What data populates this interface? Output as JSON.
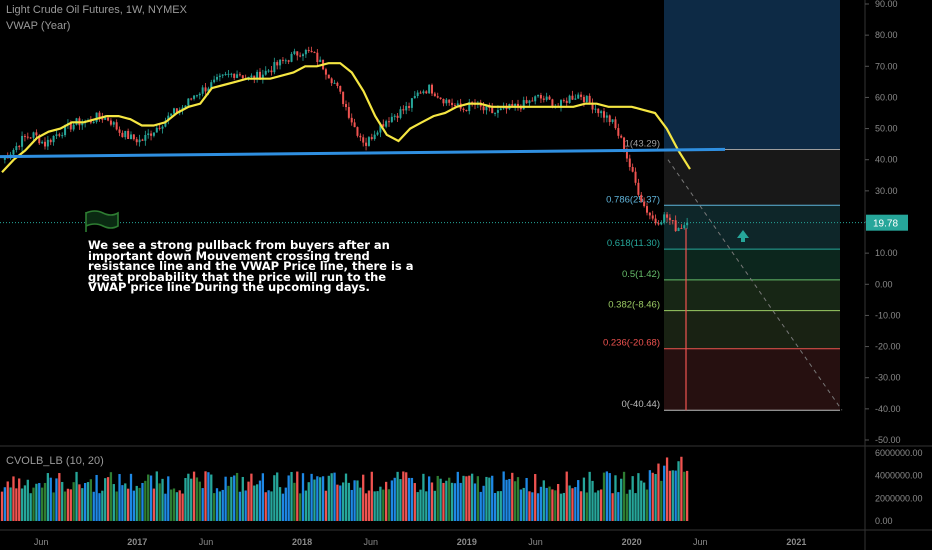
{
  "header": {
    "symbol": "Light Crude Oil Futures, 1W, NYMEX",
    "indicator": "VWAP (Year)",
    "volume_indicator": "CVOLB_LB (10, 20)"
  },
  "annotation": {
    "text": "We see a strong pullback from buyers after an important down Mouvement crossing trend resistance line and the  VWAP Price line, there is a great probability that the price will run to the VWAP price line During the upcoming days."
  },
  "colors": {
    "up": "#26a69a",
    "down": "#ef5350",
    "vwap": "#f5e642",
    "trendline": "#2f8fe0",
    "highlight_zone": "#0d2a45",
    "price_label_bg": "#26a69a"
  },
  "chart_data": [
    {
      "type": "candlestick",
      "title": "",
      "y_range": [
        -50,
        90
      ],
      "y_ticks": [
        "90.00",
        "80.00",
        "70.00",
        "60.00",
        "50.00",
        "40.00",
        "30.00",
        "20.00",
        "10.00",
        "0.00",
        "-10.00",
        "-20.00",
        "-30.00",
        "-40.00",
        "-50.00"
      ],
      "x_ticks": [
        "Jun",
        "2017",
        "Jun",
        "2018",
        "Jun",
        "2019",
        "Jun",
        "2020",
        "Jun",
        "2021"
      ],
      "x_tick_dates": [
        "2016-06",
        "2017-01",
        "2017-06",
        "2018-01",
        "2018-06",
        "2019-01",
        "2019-06",
        "2020-01",
        "2020-06",
        "2021-01"
      ],
      "x_range": [
        "2016-03",
        "2021-06"
      ],
      "current_price": "19.78",
      "price_close_approx": [
        40,
        43,
        47,
        48,
        45,
        48,
        50,
        52,
        52,
        54,
        53,
        49,
        47,
        46,
        49,
        52,
        55,
        57,
        61,
        63,
        65,
        67,
        68,
        66,
        67,
        69,
        71,
        73,
        75,
        74,
        70,
        65,
        58,
        50,
        45,
        50,
        53,
        55,
        57,
        62,
        63,
        60,
        58,
        56,
        58,
        56,
        55,
        56,
        57,
        58,
        60,
        59,
        57,
        60,
        61,
        58,
        55,
        52,
        45,
        34,
        25,
        20,
        22,
        18,
        19.78
      ],
      "vwap_approx": [
        36,
        40,
        43,
        47,
        49,
        50,
        52,
        52,
        53,
        54,
        54,
        53,
        51,
        51,
        52,
        55,
        57,
        58,
        63,
        64,
        65,
        66,
        66,
        66,
        67,
        68,
        70,
        70,
        71,
        71,
        68,
        62,
        54,
        48,
        46,
        50,
        52,
        54,
        55,
        57,
        58,
        58,
        57,
        57,
        57,
        57,
        57,
        57,
        57,
        57,
        58,
        58,
        57,
        57,
        57,
        56,
        55,
        50,
        43,
        37
      ],
      "trendline": {
        "from_price": 41,
        "to_price": 43.3
      },
      "fibonacci": [
        {
          "level": "1",
          "value": "43.29",
          "label": "1(43.29)",
          "color": "#9e9e9e"
        },
        {
          "level": "0.786",
          "value": "25.37",
          "label": "0.786(25.37)",
          "color": "#5fb3d9"
        },
        {
          "level": "0.618",
          "value": "11.30",
          "label": "0.618(11.30)",
          "color": "#26a69a"
        },
        {
          "level": "0.5",
          "value": "1.42",
          "label": "0.5(1.42)",
          "color": "#66bb6a"
        },
        {
          "level": "0.382",
          "value": "-8.46",
          "label": "0.382(-8.46)",
          "color": "#9ccc65"
        },
        {
          "level": "0.236",
          "value": "-20.68",
          "label": "0.236(-20.68)",
          "color": "#ef5350"
        },
        {
          "level": "0",
          "value": "-40.44",
          "label": "0(-40.44)",
          "color": "#bdbdbd"
        }
      ],
      "spike_low": -40.44
    },
    {
      "type": "bar",
      "title": "",
      "y_range": [
        0,
        6000000
      ],
      "y_ticks": [
        "6000000.00",
        "4000000.00",
        "2000000.00",
        "0.00"
      ],
      "series_colors": [
        "#26a69a",
        "#ef5350",
        "#1e88e5",
        "#2e7d32",
        "#8e24aa"
      ]
    }
  ]
}
